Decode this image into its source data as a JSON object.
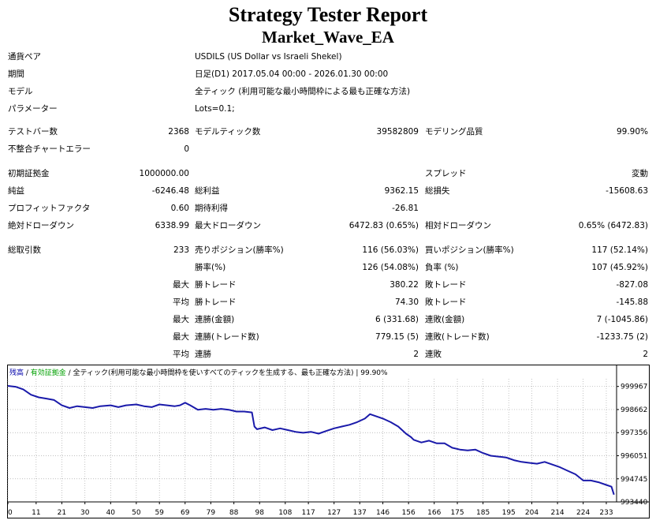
{
  "report": {
    "title": "Strategy Tester Report",
    "ea_name": "Market_Wave_EA"
  },
  "settings": {
    "symbol": {
      "label": "通貨ペア",
      "value": "USDILS (US Dollar vs Israeli Shekel)"
    },
    "period": {
      "label": "期間",
      "value": "日足(D1) 2017.05.04 00:00 - 2026.01.30 00:00"
    },
    "model": {
      "label": "モデル",
      "value": "全ティック (利用可能な最小時間枠による最も正確な方法)"
    },
    "parameters": {
      "label": "パラメーター",
      "value": "Lots=0.1;"
    }
  },
  "stats": {
    "bars_tested": {
      "label": "テストバー数",
      "value": "2368"
    },
    "ticks_modelled": {
      "label": "モデルティック数",
      "value": "39582809"
    },
    "modelling_quality": {
      "label": "モデリング品質",
      "value": "99.90%"
    },
    "mismatched_errors": {
      "label": "不整合チャートエラー",
      "value": "0"
    },
    "initial_deposit": {
      "label": "初期証拠金",
      "value": "1000000.00"
    },
    "spread": {
      "label": "スプレッド",
      "value": "変動"
    },
    "net_profit": {
      "label": "純益",
      "value": "-6246.48"
    },
    "gross_profit": {
      "label": "総利益",
      "value": "9362.15"
    },
    "gross_loss": {
      "label": "総損失",
      "value": "-15608.63"
    },
    "profit_factor": {
      "label": "プロフィットファクタ",
      "value": "0.60"
    },
    "expected_payoff": {
      "label": "期待利得",
      "value": "-26.81"
    },
    "absolute_drawdown": {
      "label": "絶対ドローダウン",
      "value": "6338.99"
    },
    "maximal_drawdown": {
      "label": "最大ドローダウン",
      "value": "6472.83 (0.65%)"
    },
    "relative_drawdown": {
      "label": "相対ドローダウン",
      "value": "0.65% (6472.83)"
    },
    "total_trades": {
      "label": "総取引数",
      "value": "233"
    },
    "short_positions": {
      "label": "売りポジション(勝率%)",
      "value": "116 (56.03%)"
    },
    "long_positions": {
      "label": "買いポジション(勝率%)",
      "value": "117 (52.14%)"
    },
    "profit_trades": {
      "label": "勝率(%)",
      "value": "126 (54.08%)"
    },
    "loss_trades": {
      "label": "負率 (%)",
      "value": "107 (45.92%)"
    },
    "largest_profit": {
      "prefix": "最大",
      "label": "勝トレード",
      "value": "380.22"
    },
    "largest_loss": {
      "label": "敗トレード",
      "value": "-827.08"
    },
    "average_profit": {
      "prefix": "平均",
      "label": "勝トレード",
      "value": "74.30"
    },
    "average_loss": {
      "label": "敗トレード",
      "value": "-145.88"
    },
    "max_consec_wins": {
      "prefix": "最大",
      "label": "連勝(金額)",
      "value": "6 (331.68)"
    },
    "max_consec_losses": {
      "label": "連敗(金額)",
      "value": "7 (-1045.86)"
    },
    "max_consec_profit": {
      "prefix": "最大",
      "label": "連勝(トレード数)",
      "value": "779.15 (5)"
    },
    "max_consec_loss": {
      "label": "連敗(トレード数)",
      "value": "-1233.75 (2)"
    },
    "avg_consec_wins": {
      "prefix": "平均",
      "label": "連勝",
      "value": "2"
    },
    "avg_consec_losses": {
      "label": "連敗",
      "value": "2"
    }
  },
  "chart_data": {
    "type": "line",
    "legend": [
      {
        "text": "残高",
        "color": "#0000aa"
      },
      {
        "text": " / ",
        "color": "#000000"
      },
      {
        "text": "有効証拠金",
        "color": "#00a000"
      },
      {
        "text": " / 全ティック(利用可能な最小時間枠を使いすべてのティックを生成する、最も正確な方法)  |  99.90%",
        "color": "#000000"
      }
    ],
    "line_color": "#1a1aaa",
    "xlim": [
      0,
      237
    ],
    "ylim": [
      993440,
      1000400
    ],
    "x_ticks": [
      0,
      11,
      21,
      30,
      40,
      50,
      59,
      69,
      79,
      88,
      98,
      108,
      117,
      127,
      137,
      146,
      156,
      166,
      175,
      185,
      195,
      204,
      214,
      224,
      233
    ],
    "y_ticks": [
      999967,
      998662,
      997356,
      996051,
      994745,
      993440
    ],
    "x": [
      0,
      3,
      6,
      9,
      12,
      15,
      18,
      21,
      24,
      27,
      30,
      33,
      36,
      40,
      43,
      46,
      50,
      53,
      56,
      59,
      62,
      65,
      67,
      69,
      71,
      74,
      77,
      80,
      83,
      86,
      89,
      92,
      95,
      96,
      97,
      100,
      103,
      106,
      109,
      112,
      115,
      118,
      121,
      124,
      127,
      130,
      133,
      136,
      139,
      141,
      143,
      146,
      149,
      152,
      155,
      157,
      158,
      161,
      164,
      167,
      170,
      173,
      176,
      179,
      182,
      185,
      188,
      191,
      194,
      197,
      200,
      203,
      206,
      209,
      212,
      215,
      218,
      221,
      224,
      227,
      230,
      233,
      235,
      236
    ],
    "y": [
      1000000,
      999950,
      999800,
      999500,
      999350,
      999280,
      999200,
      998900,
      998750,
      998850,
      998800,
      998750,
      998850,
      998900,
      998800,
      998900,
      998950,
      998850,
      998800,
      998950,
      998900,
      998850,
      998900,
      999050,
      998900,
      998650,
      998700,
      998650,
      998700,
      998650,
      998550,
      998550,
      998500,
      997700,
      997550,
      997650,
      997500,
      997600,
      997500,
      997400,
      997350,
      997400,
      997300,
      997450,
      997600,
      997700,
      997800,
      997950,
      998150,
      998400,
      998300,
      998150,
      997950,
      997700,
      997300,
      997100,
      996950,
      996800,
      996900,
      996750,
      996750,
      996500,
      996400,
      996350,
      996400,
      996200,
      996050,
      996000,
      995950,
      995800,
      995700,
      995650,
      995600,
      995700,
      995550,
      995400,
      995200,
      995000,
      994650,
      994650,
      994550,
      994400,
      994300,
      993850
    ]
  }
}
